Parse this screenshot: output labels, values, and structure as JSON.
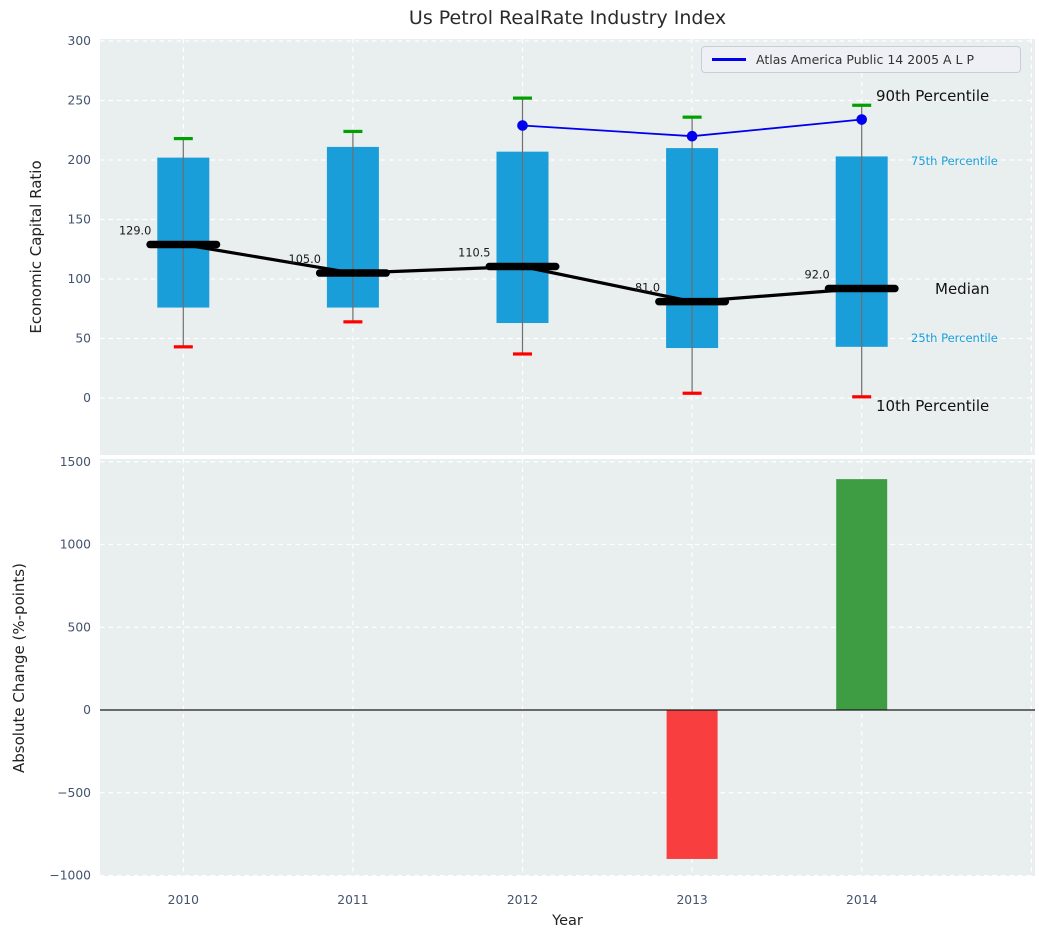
{
  "figure": {
    "title": "Us Petrol RealRate Industry Index",
    "xlabel": "Year",
    "legend": {
      "label": "Atlas America Public 14 2005 A L P"
    }
  },
  "colors": {
    "box_fill": "#1a9eda",
    "median": "#000000",
    "whisker": "#6f6f6f",
    "cap_top": "#00a000",
    "cap_bottom": "#ff0000",
    "atlas_line": "#0000ee",
    "bar_positive": "#3e9d42",
    "bar_negative": "#f83e3e",
    "zero_line": "#1a1a1a",
    "panel_bg": "#e9eeef",
    "grid": "#ffffff",
    "tick_text": "#44536e",
    "percentile_text": "#1a9fdc",
    "value_label_text": "#1a1a1a"
  },
  "chart_data": [
    {
      "type": "box",
      "title": "Us Petrol RealRate Industry Index",
      "ylabel": "Economic Capital Ratio",
      "categories": [
        "2010",
        "2011",
        "2012",
        "2013",
        "2014"
      ],
      "series": [
        {
          "name": "90th Percentile",
          "values": [
            218,
            224,
            252,
            236,
            246
          ]
        },
        {
          "name": "75th Percentile",
          "values": [
            202,
            211,
            207,
            210,
            203
          ]
        },
        {
          "name": "Median",
          "values": [
            129,
            105,
            110.5,
            81,
            92
          ]
        },
        {
          "name": "25th Percentile",
          "values": [
            76,
            76,
            63,
            42,
            43
          ]
        },
        {
          "name": "10th Percentile",
          "values": [
            43,
            64,
            37,
            4,
            1
          ]
        },
        {
          "name": "Atlas America Public 14 2005 A L P",
          "values": [
            null,
            null,
            229,
            220,
            234
          ]
        }
      ],
      "median_labels": [
        "129.0",
        "105.0",
        "110.5",
        "81.0",
        "92.0"
      ],
      "annotations": [
        "90th Percentile",
        "75th Percentile",
        "Median",
        "25th Percentile",
        "10th Percentile"
      ],
      "yticks": [
        0,
        50,
        100,
        150,
        200,
        250,
        300
      ],
      "ylim": [
        -48,
        302
      ],
      "grid": "white-dashed",
      "legend_position": "upper right"
    },
    {
      "type": "bar",
      "ylabel": "Absolute Change (%-points)",
      "xlabel": "Year",
      "categories": [
        "2010",
        "2011",
        "2012",
        "2013",
        "2014"
      ],
      "values": [
        null,
        null,
        null,
        -900,
        1395
      ],
      "yticks": [
        -1000,
        -500,
        0,
        500,
        1000,
        1500
      ],
      "ylim": [
        -1003,
        1517
      ],
      "grid": "white-dashed"
    }
  ]
}
